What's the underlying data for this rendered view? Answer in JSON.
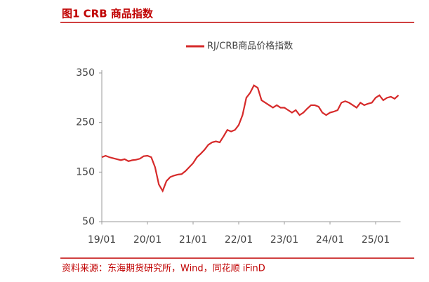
{
  "chart_data": {
    "type": "line",
    "title": "图1   CRB 商品指数",
    "source": "资料来源：东海期货研究所，Wind，同花顺 iFinD",
    "x": [
      "19/01",
      "19/02",
      "19/03",
      "19/04",
      "19/05",
      "19/06",
      "19/07",
      "19/08",
      "19/09",
      "19/10",
      "19/11",
      "19/12",
      "20/01",
      "20/02",
      "20/03",
      "20/04",
      "20/05",
      "20/06",
      "20/07",
      "20/08",
      "20/09",
      "20/10",
      "20/11",
      "20/12",
      "21/01",
      "21/02",
      "21/03",
      "21/04",
      "21/05",
      "21/06",
      "21/07",
      "21/08",
      "21/09",
      "21/10",
      "21/11",
      "21/12",
      "22/01",
      "22/02",
      "22/03",
      "22/04",
      "22/05",
      "22/06",
      "22/07",
      "22/08",
      "22/09",
      "22/10",
      "22/11",
      "22/12",
      "23/01",
      "23/02",
      "23/03",
      "23/04",
      "23/05",
      "23/06",
      "23/07",
      "23/08",
      "23/09",
      "23/10",
      "23/11",
      "23/12",
      "24/01",
      "24/02",
      "24/03",
      "24/04",
      "24/05",
      "24/06",
      "24/07",
      "24/08",
      "24/09",
      "24/10",
      "24/11",
      "24/12",
      "25/01",
      "25/02",
      "25/03",
      "25/04",
      "25/05",
      "25/06",
      "25/07"
    ],
    "series": [
      {
        "name": "RJ/CRB商品价格指数",
        "color": "#d62a2a",
        "values": [
          180,
          183,
          180,
          178,
          176,
          174,
          176,
          172,
          174,
          175,
          177,
          182,
          183,
          180,
          160,
          125,
          112,
          132,
          140,
          143,
          145,
          146,
          152,
          160,
          168,
          180,
          187,
          195,
          205,
          210,
          212,
          210,
          222,
          235,
          232,
          235,
          245,
          265,
          300,
          310,
          325,
          320,
          295,
          290,
          285,
          280,
          285,
          280,
          280,
          275,
          270,
          275,
          265,
          270,
          278,
          285,
          285,
          282,
          270,
          265,
          270,
          272,
          275,
          290,
          293,
          290,
          285,
          280,
          290,
          285,
          288,
          290,
          300,
          305,
          295,
          300,
          302,
          298,
          305
        ]
      }
    ],
    "xticks": [
      "19/01",
      "20/01",
      "21/01",
      "22/01",
      "23/01",
      "24/01",
      "25/01"
    ],
    "ylim": [
      50,
      350
    ],
    "yticks": [
      50,
      150,
      250,
      350
    ],
    "grid": false
  }
}
